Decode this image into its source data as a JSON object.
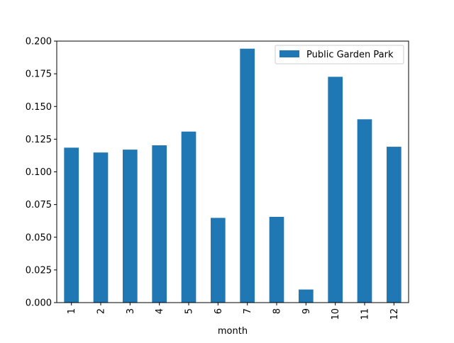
{
  "chart_data": {
    "type": "bar",
    "categories": [
      "1",
      "2",
      "3",
      "4",
      "5",
      "6",
      "7",
      "8",
      "9",
      "10",
      "11",
      "12"
    ],
    "series": [
      {
        "name": "Public Garden Park",
        "values": [
          0.1185,
          0.1148,
          0.117,
          0.1203,
          0.1308,
          0.0648,
          0.1942,
          0.0656,
          0.01,
          0.1727,
          0.1402,
          0.1192
        ],
        "color": "#1f77b4"
      }
    ],
    "title": "",
    "xlabel": "month",
    "ylabel": "",
    "ylim": [
      0,
      0.2
    ],
    "yticks": [
      0.0,
      0.025,
      0.05,
      0.075,
      0.1,
      0.125,
      0.15,
      0.175,
      0.2
    ],
    "ytick_labels": [
      "0.000",
      "0.025",
      "0.050",
      "0.075",
      "0.100",
      "0.125",
      "0.150",
      "0.175",
      "0.200"
    ],
    "legend_position": "top-right",
    "grid": false
  }
}
